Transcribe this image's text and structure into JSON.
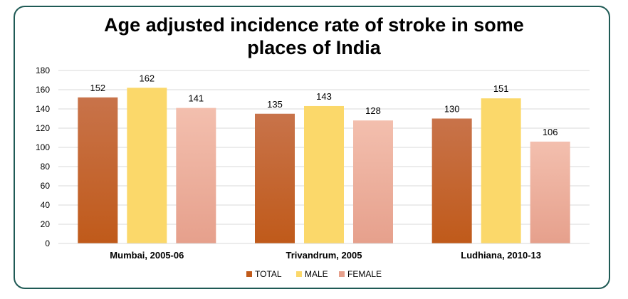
{
  "chart_data": {
    "type": "bar",
    "title_lines": [
      "Age adjusted incidence rate of stroke in some",
      "places of India"
    ],
    "categories": [
      "Mumbai, 2005-06",
      "Trivandrum, 2005",
      "Ludhiana, 2010-13"
    ],
    "series": [
      {
        "name": "TOTAL",
        "values": [
          152,
          135,
          130
        ]
      },
      {
        "name": "MALE",
        "values": [
          162,
          143,
          151
        ]
      },
      {
        "name": "FEMALE",
        "values": [
          141,
          128,
          106
        ]
      }
    ],
    "ylim": [
      0,
      180
    ],
    "yticks": [
      0,
      20,
      40,
      60,
      80,
      100,
      120,
      140,
      160,
      180
    ],
    "grid": true,
    "legend_position": "bottom",
    "colors": {
      "TOTAL": [
        "#c8734a",
        "#c05a1a"
      ],
      "MALE": [
        "#fbd86a",
        "#fbd86a"
      ],
      "FEMALE": [
        "#f3bfae",
        "#e6a08c"
      ]
    }
  }
}
